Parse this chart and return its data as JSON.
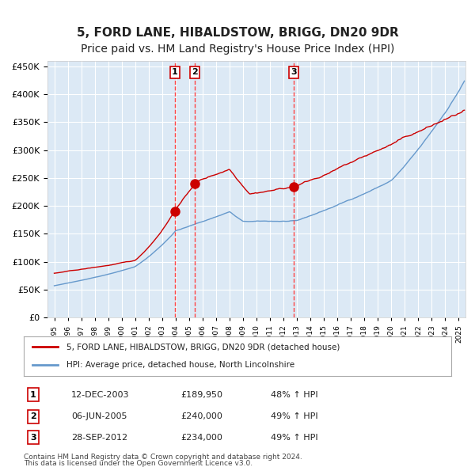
{
  "title": "5, FORD LANE, HIBALDSTOW, BRIGG, DN20 9DR",
  "subtitle": "Price paid vs. HM Land Registry's House Price Index (HPI)",
  "title_fontsize": 11,
  "subtitle_fontsize": 10,
  "background_color": "#ffffff",
  "plot_bg_color": "#dce9f5",
  "grid_color": "#ffffff",
  "red_line_color": "#cc0000",
  "blue_line_color": "#6699cc",
  "sale_marker_color": "#cc0000",
  "vline_color": "#ff4444",
  "sales": [
    {
      "label": "1",
      "date_num": 2003.95,
      "price": 189950,
      "hpi_pct": "48%"
    },
    {
      "label": "2",
      "date_num": 2005.43,
      "price": 240000,
      "hpi_pct": "49%"
    },
    {
      "label": "3",
      "date_num": 2012.74,
      "price": 234000,
      "hpi_pct": "49%"
    }
  ],
  "sale_dates_str": [
    "12-DEC-2003",
    "06-JUN-2005",
    "28-SEP-2012"
  ],
  "sale_prices_str": [
    "£189,950",
    "£240,000",
    "£234,000"
  ],
  "sale_hpi_str": [
    "48% ↑ HPI",
    "49% ↑ HPI",
    "49% ↑ HPI"
  ],
  "legend_line1": "5, FORD LANE, HIBALDSTOW, BRIGG, DN20 9DR (detached house)",
  "legend_line2": "HPI: Average price, detached house, North Lincolnshire",
  "footer1": "Contains HM Land Registry data © Crown copyright and database right 2024.",
  "footer2": "This data is licensed under the Open Government Licence v3.0.",
  "ylim": [
    0,
    460000
  ],
  "yticks": [
    0,
    50000,
    100000,
    150000,
    200000,
    250000,
    300000,
    350000,
    400000,
    450000
  ],
  "xmin": 1994.5,
  "xmax": 2025.5
}
